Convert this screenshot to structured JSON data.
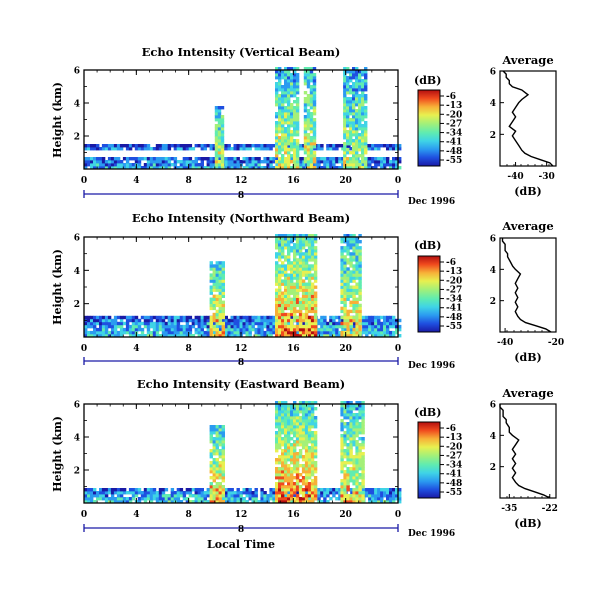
{
  "chart_data": [
    {
      "type": "heatmap",
      "title": "Echo Intensity (Vertical Beam)",
      "ylabel": "Height (km)",
      "xlim": [
        0,
        24
      ],
      "ylim": [
        0,
        6
      ],
      "xticks": [
        "0",
        "4",
        "8",
        "12",
        "16",
        "20",
        "0"
      ],
      "yticks": [
        "2",
        "4",
        "6"
      ],
      "date_marker": "8",
      "date_label": "Dec 1996",
      "colorbar": {
        "label": "(dB)",
        "ticks": [
          "-6",
          "-13",
          "-20",
          "-27",
          "-34",
          "-41",
          "-48",
          "-55"
        ]
      },
      "echo_regions": [
        {
          "x": [
            0.0,
            24.0
          ],
          "y": [
            0.0,
            0.7
          ],
          "level": 0.25
        },
        {
          "x": [
            0.0,
            24.0
          ],
          "y": [
            1.15,
            1.35
          ],
          "level": 0.2
        },
        {
          "x": [
            10.0,
            10.5
          ],
          "y": [
            0.0,
            3.8
          ],
          "level": 0.55
        },
        {
          "x": [
            14.6,
            16.4
          ],
          "y": [
            0.0,
            6.0
          ],
          "level": 0.55
        },
        {
          "x": [
            16.8,
            17.5
          ],
          "y": [
            0.0,
            6.0
          ],
          "level": 0.55
        },
        {
          "x": [
            19.8,
            21.4
          ],
          "y": [
            0.0,
            6.0
          ],
          "level": 0.5
        }
      ],
      "average_profile": {
        "title": "Average",
        "xlabel": "(dB)",
        "xticks": [
          "-40",
          "-30"
        ],
        "yticks": [
          "2",
          "4",
          "6"
        ],
        "xlim": [
          -45,
          -27
        ],
        "x": [
          -28,
          -29,
          -32,
          -35,
          -37,
          -38,
          -39,
          -40,
          -41,
          -40,
          -42,
          -41,
          -40,
          -41,
          -40,
          -39,
          -38,
          -36,
          -38,
          -41,
          -42,
          -42,
          -43,
          -43,
          -44
        ],
        "y": [
          0.0,
          0.2,
          0.4,
          0.6,
          0.8,
          1.0,
          1.3,
          1.6,
          1.9,
          2.2,
          2.5,
          2.8,
          3.1,
          3.4,
          3.7,
          4.0,
          4.2,
          4.5,
          4.8,
          5.0,
          5.2,
          5.4,
          5.6,
          5.8,
          6.0
        ]
      }
    },
    {
      "type": "heatmap",
      "title": "Echo Intensity (Northward Beam)",
      "ylabel": "Height (km)",
      "xlim": [
        0,
        24
      ],
      "ylim": [
        0,
        6
      ],
      "xticks": [
        "0",
        "4",
        "8",
        "12",
        "16",
        "20",
        "0"
      ],
      "yticks": [
        "2",
        "4",
        "6"
      ],
      "date_marker": "8",
      "date_label": "Dec 1996",
      "colorbar": {
        "label": "(dB)",
        "ticks": [
          "-6",
          "-13",
          "-20",
          "-27",
          "-34",
          "-41",
          "-48",
          "-55"
        ]
      },
      "echo_regions": [
        {
          "x": [
            0.0,
            24.0
          ],
          "y": [
            0.0,
            1.2
          ],
          "level": 0.3
        },
        {
          "x": [
            9.6,
            10.6
          ],
          "y": [
            0.0,
            4.5
          ],
          "level": 0.65
        },
        {
          "x": [
            14.6,
            17.6
          ],
          "y": [
            0.0,
            6.0
          ],
          "level": 0.7
        },
        {
          "x": [
            19.6,
            21.0
          ],
          "y": [
            0.0,
            6.0
          ],
          "level": 0.6
        }
      ],
      "average_profile": {
        "title": "Average",
        "xlabel": "(dB)",
        "xticks": [
          "-40",
          "-20"
        ],
        "yticks": [
          "2",
          "4",
          "6"
        ],
        "xlim": [
          -42,
          -20
        ],
        "x": [
          -22,
          -24,
          -28,
          -32,
          -34,
          -35,
          -36,
          -35,
          -36,
          -35,
          -36,
          -35,
          -36,
          -35,
          -34,
          -36,
          -37,
          -38,
          -39,
          -39,
          -40,
          -40,
          -40,
          -41,
          -41
        ],
        "y": [
          0.0,
          0.2,
          0.4,
          0.6,
          0.8,
          1.0,
          1.3,
          1.6,
          1.9,
          2.2,
          2.5,
          2.8,
          3.1,
          3.4,
          3.7,
          4.0,
          4.2,
          4.5,
          4.8,
          5.0,
          5.2,
          5.4,
          5.6,
          5.8,
          6.0
        ]
      }
    },
    {
      "type": "heatmap",
      "title": "Echo Intensity (Eastward Beam)",
      "ylabel": "Height (km)",
      "xlabel": "Local Time",
      "xlim": [
        0,
        24
      ],
      "ylim": [
        0,
        6
      ],
      "xticks": [
        "0",
        "4",
        "8",
        "12",
        "16",
        "20",
        "0"
      ],
      "yticks": [
        "2",
        "4",
        "6"
      ],
      "date_marker": "8",
      "date_label": "Dec 1996",
      "colorbar": {
        "label": "(dB)",
        "ticks": [
          "-6",
          "-13",
          "-20",
          "-27",
          "-34",
          "-41",
          "-48",
          "-55"
        ]
      },
      "echo_regions": [
        {
          "x": [
            0.0,
            24.0
          ],
          "y": [
            0.0,
            0.9
          ],
          "level": 0.3
        },
        {
          "x": [
            9.6,
            10.6
          ],
          "y": [
            0.0,
            4.6
          ],
          "level": 0.65
        },
        {
          "x": [
            14.6,
            17.6
          ],
          "y": [
            0.0,
            6.0
          ],
          "level": 0.7
        },
        {
          "x": [
            19.6,
            21.2
          ],
          "y": [
            0.0,
            6.0
          ],
          "level": 0.6
        }
      ],
      "average_profile": {
        "title": "Average",
        "xlabel": "(dB)",
        "xticks": [
          "-35",
          "-22"
        ],
        "yticks": [
          "2",
          "4",
          "6"
        ],
        "xlim": [
          -38,
          -20
        ],
        "x": [
          -22,
          -24,
          -27,
          -30,
          -32,
          -33,
          -34,
          -33,
          -34,
          -33,
          -34,
          -33,
          -34,
          -33,
          -32,
          -34,
          -35,
          -35,
          -36,
          -36,
          -37,
          -37,
          -37,
          -38,
          -38
        ],
        "y": [
          0.0,
          0.2,
          0.4,
          0.6,
          0.8,
          1.0,
          1.3,
          1.6,
          1.9,
          2.2,
          2.5,
          2.8,
          3.1,
          3.4,
          3.7,
          4.0,
          4.2,
          4.5,
          4.8,
          5.0,
          5.2,
          5.4,
          5.6,
          5.8,
          6.0
        ]
      }
    }
  ],
  "colors": {
    "colormap": [
      "#1a1aa6",
      "#1f4fe0",
      "#2b9bf0",
      "#3fd4e6",
      "#60ecb0",
      "#a4f078",
      "#e8f050",
      "#f7b038",
      "#f04a1e",
      "#b30f0f"
    ],
    "axis": "#000000",
    "date_line": "#1a1aa6"
  }
}
